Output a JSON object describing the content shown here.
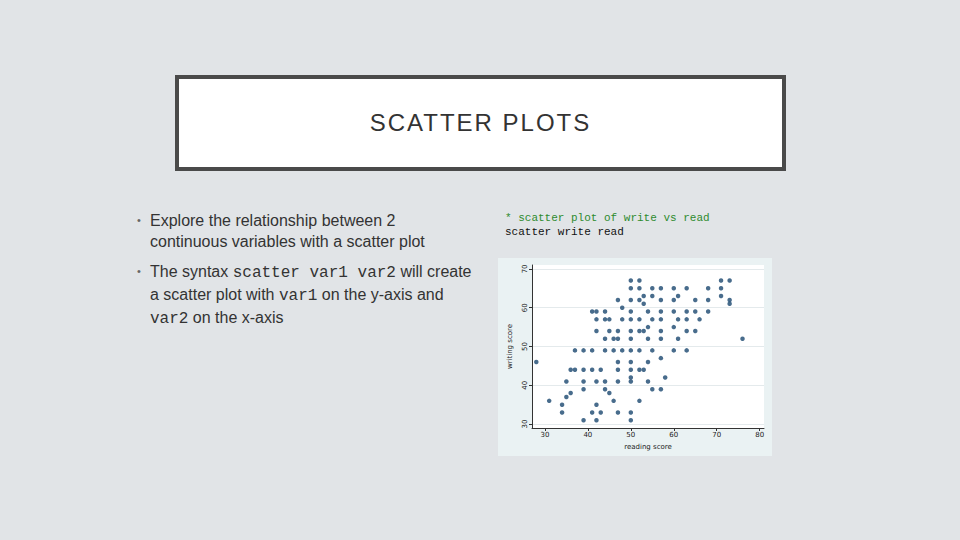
{
  "slide": {
    "title": "SCATTER PLOTS",
    "bullets": [
      [
        "Explore the relationship between 2 continuous variables with a scatter plot"
      ],
      [
        "The syntax ",
        {
          "code": "scatter var1 var2"
        },
        " will create a scatter plot with ",
        {
          "code": "var1"
        },
        " on the y-axis and ",
        {
          "code": "var2"
        },
        " on the x-axis"
      ]
    ],
    "code_comment": "* scatter plot of write vs read",
    "code_line": "scatter write read"
  },
  "chart_data": {
    "type": "scatter",
    "x_label": "reading score",
    "y_label": "writing score",
    "x": [
      28,
      31,
      34,
      34,
      35,
      36,
      35,
      36,
      37,
      37,
      39,
      39,
      39,
      39,
      39,
      41,
      41,
      41,
      41,
      42,
      42,
      42,
      42,
      42,
      42,
      43,
      43,
      44,
      44,
      44,
      44,
      44,
      44,
      45,
      45,
      45,
      46,
      46,
      46,
      47,
      47,
      47,
      47,
      47,
      47,
      47,
      48,
      48,
      48,
      50,
      50,
      50,
      50,
      50,
      50,
      50,
      50,
      50,
      50,
      50,
      50,
      50,
      50,
      52,
      52,
      52,
      52,
      52,
      52,
      52,
      52,
      53,
      53,
      53,
      53,
      54,
      54,
      54,
      54,
      54,
      55,
      55,
      55,
      55,
      55,
      57,
      57,
      57,
      57,
      57,
      57,
      57,
      57,
      58,
      60,
      60,
      60,
      60,
      60,
      61,
      61,
      61,
      63,
      63,
      63,
      63,
      63,
      65,
      65,
      65,
      66,
      68,
      68,
      68,
      71,
      71,
      71,
      73,
      73,
      73,
      76
    ],
    "values": [
      46,
      36,
      35,
      33,
      37,
      38,
      41,
      44,
      44,
      49,
      31,
      39,
      41,
      44,
      49,
      44,
      49,
      33,
      59,
      35,
      41,
      31,
      54,
      57,
      59,
      33,
      44,
      41,
      49,
      57,
      59,
      52,
      39,
      38,
      54,
      57,
      52,
      36,
      49,
      33,
      41,
      44,
      46,
      52,
      54,
      62,
      49,
      57,
      60,
      31,
      33,
      41,
      42,
      44,
      46,
      49,
      52,
      54,
      57,
      59,
      62,
      65,
      67,
      36,
      44,
      49,
      54,
      57,
      62,
      65,
      67,
      44,
      54,
      61,
      63,
      41,
      46,
      52,
      55,
      59,
      39,
      49,
      57,
      63,
      65,
      39,
      47,
      52,
      54,
      57,
      59,
      62,
      65,
      42,
      49,
      55,
      59,
      62,
      65,
      52,
      57,
      63,
      49,
      54,
      57,
      59,
      65,
      54,
      59,
      62,
      57,
      59,
      62,
      65,
      63,
      65,
      67,
      62,
      61,
      67,
      52
    ],
    "color": "#1a476f",
    "marker": "circle",
    "xlim": [
      27,
      81
    ],
    "xticks": [
      30,
      40,
      50,
      60,
      70,
      80
    ],
    "ylim": [
      29,
      71
    ],
    "yticks": [
      30,
      40,
      50,
      60,
      70
    ],
    "grid": true
  }
}
